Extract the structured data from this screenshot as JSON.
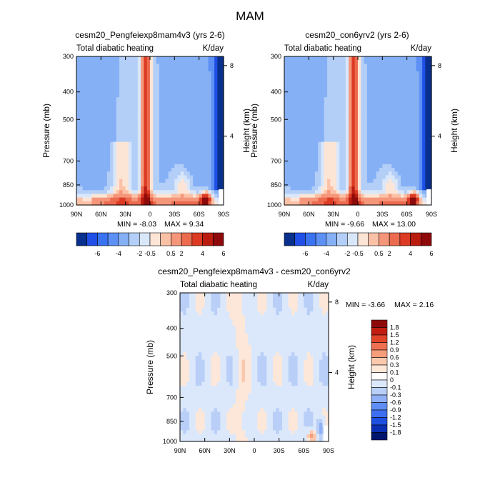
{
  "figure_title": "MAM",
  "colors": {
    "neg": [
      "#08308c",
      "#1f4fe6",
      "#3a73f2",
      "#5d90f5",
      "#86b0f6",
      "#b3cff7",
      "#d9e7fb"
    ],
    "pos": [
      "#fde5d6",
      "#fbc1a6",
      "#f5967a",
      "#ec6a4e",
      "#dc3a23",
      "#ba1c10",
      "#8e0a0a"
    ]
  },
  "chart_data": [
    {
      "type": "heatmap",
      "title": "cesm20_Pengfeiexp8mam4v3 (yrs 2-6)",
      "left_label": "Total diabatic heating",
      "right_label": "K/day",
      "ylabel": "Pressure (mb)",
      "ylabel_right": "Height (km)",
      "x_ticks": [
        "90N",
        "60N",
        "30N",
        "0",
        "30S",
        "60S",
        "90S"
      ],
      "x_values": [
        90,
        60,
        30,
        0,
        -30,
        -60,
        -90
      ],
      "y_ticks": [
        "300",
        "400",
        "500",
        "700",
        "850",
        "1000"
      ],
      "y_values": [
        300,
        400,
        500,
        700,
        850,
        1000
      ],
      "y_ticks_right": [
        "8",
        "4"
      ],
      "y_values_right_km": [
        8,
        4
      ],
      "log_pressure_axis": true,
      "min_label": "MIN =  -8.03",
      "max_label": "MAX =   9.34",
      "min": -8.03,
      "max": 9.34,
      "colorbar_levels": [
        "-6",
        "-4",
        "-2",
        "-0.5",
        "0.5",
        "2",
        "4",
        "6"
      ]
    },
    {
      "type": "heatmap",
      "title": "cesm20_con6yrv2 (yrs 2-6)",
      "left_label": "Total diabatic heating",
      "right_label": "K/day",
      "ylabel": "Pressure (mb)",
      "ylabel_right": "Height (km)",
      "x_ticks": [
        "90N",
        "60N",
        "30N",
        "0",
        "30S",
        "60S",
        "90S"
      ],
      "x_values": [
        90,
        60,
        30,
        0,
        -30,
        -60,
        -90
      ],
      "y_ticks": [
        "300",
        "400",
        "500",
        "700",
        "850",
        "1000"
      ],
      "y_values": [
        300,
        400,
        500,
        700,
        850,
        1000
      ],
      "y_ticks_right": [
        "8",
        "4"
      ],
      "y_values_right_km": [
        8,
        4
      ],
      "log_pressure_axis": true,
      "min_label": "MIN =  -9.66",
      "max_label": "MAX =  13.00",
      "min": -9.66,
      "max": 13.0,
      "colorbar_levels": [
        "-6",
        "-4",
        "-2",
        "-0.5",
        "0.5",
        "2",
        "4",
        "6"
      ]
    },
    {
      "type": "heatmap",
      "title": "cesm20_Pengfeiexp8mam4v3 - cesm20_con6yrv2",
      "left_label": "Total diabatic heating",
      "right_label": "K/day",
      "ylabel": "Pressure (mb)",
      "ylabel_right": "Height (km)",
      "x_ticks": [
        "90N",
        "60N",
        "30N",
        "0",
        "30S",
        "60S",
        "90S"
      ],
      "x_values": [
        90,
        60,
        30,
        0,
        -30,
        -60,
        -90
      ],
      "y_ticks": [
        "300",
        "400",
        "500",
        "700",
        "850",
        "1000"
      ],
      "y_values": [
        300,
        400,
        500,
        700,
        850,
        1000
      ],
      "y_ticks_right": [
        "8",
        "4"
      ],
      "y_values_right_km": [
        8,
        4
      ],
      "log_pressure_axis": true,
      "min_label": "MIN =  -3.66",
      "max_label": "MAX =   2.16",
      "min": -3.66,
      "max": 2.16,
      "colorbar_levels": [
        "1.8",
        "1.5",
        "1.2",
        "0.9",
        "0.6",
        "0.3",
        "0.1",
        "0",
        "-0.1",
        "-0.3",
        "-0.6",
        "-0.9",
        "-1.2",
        "-1.5",
        "-1.8"
      ]
    }
  ]
}
